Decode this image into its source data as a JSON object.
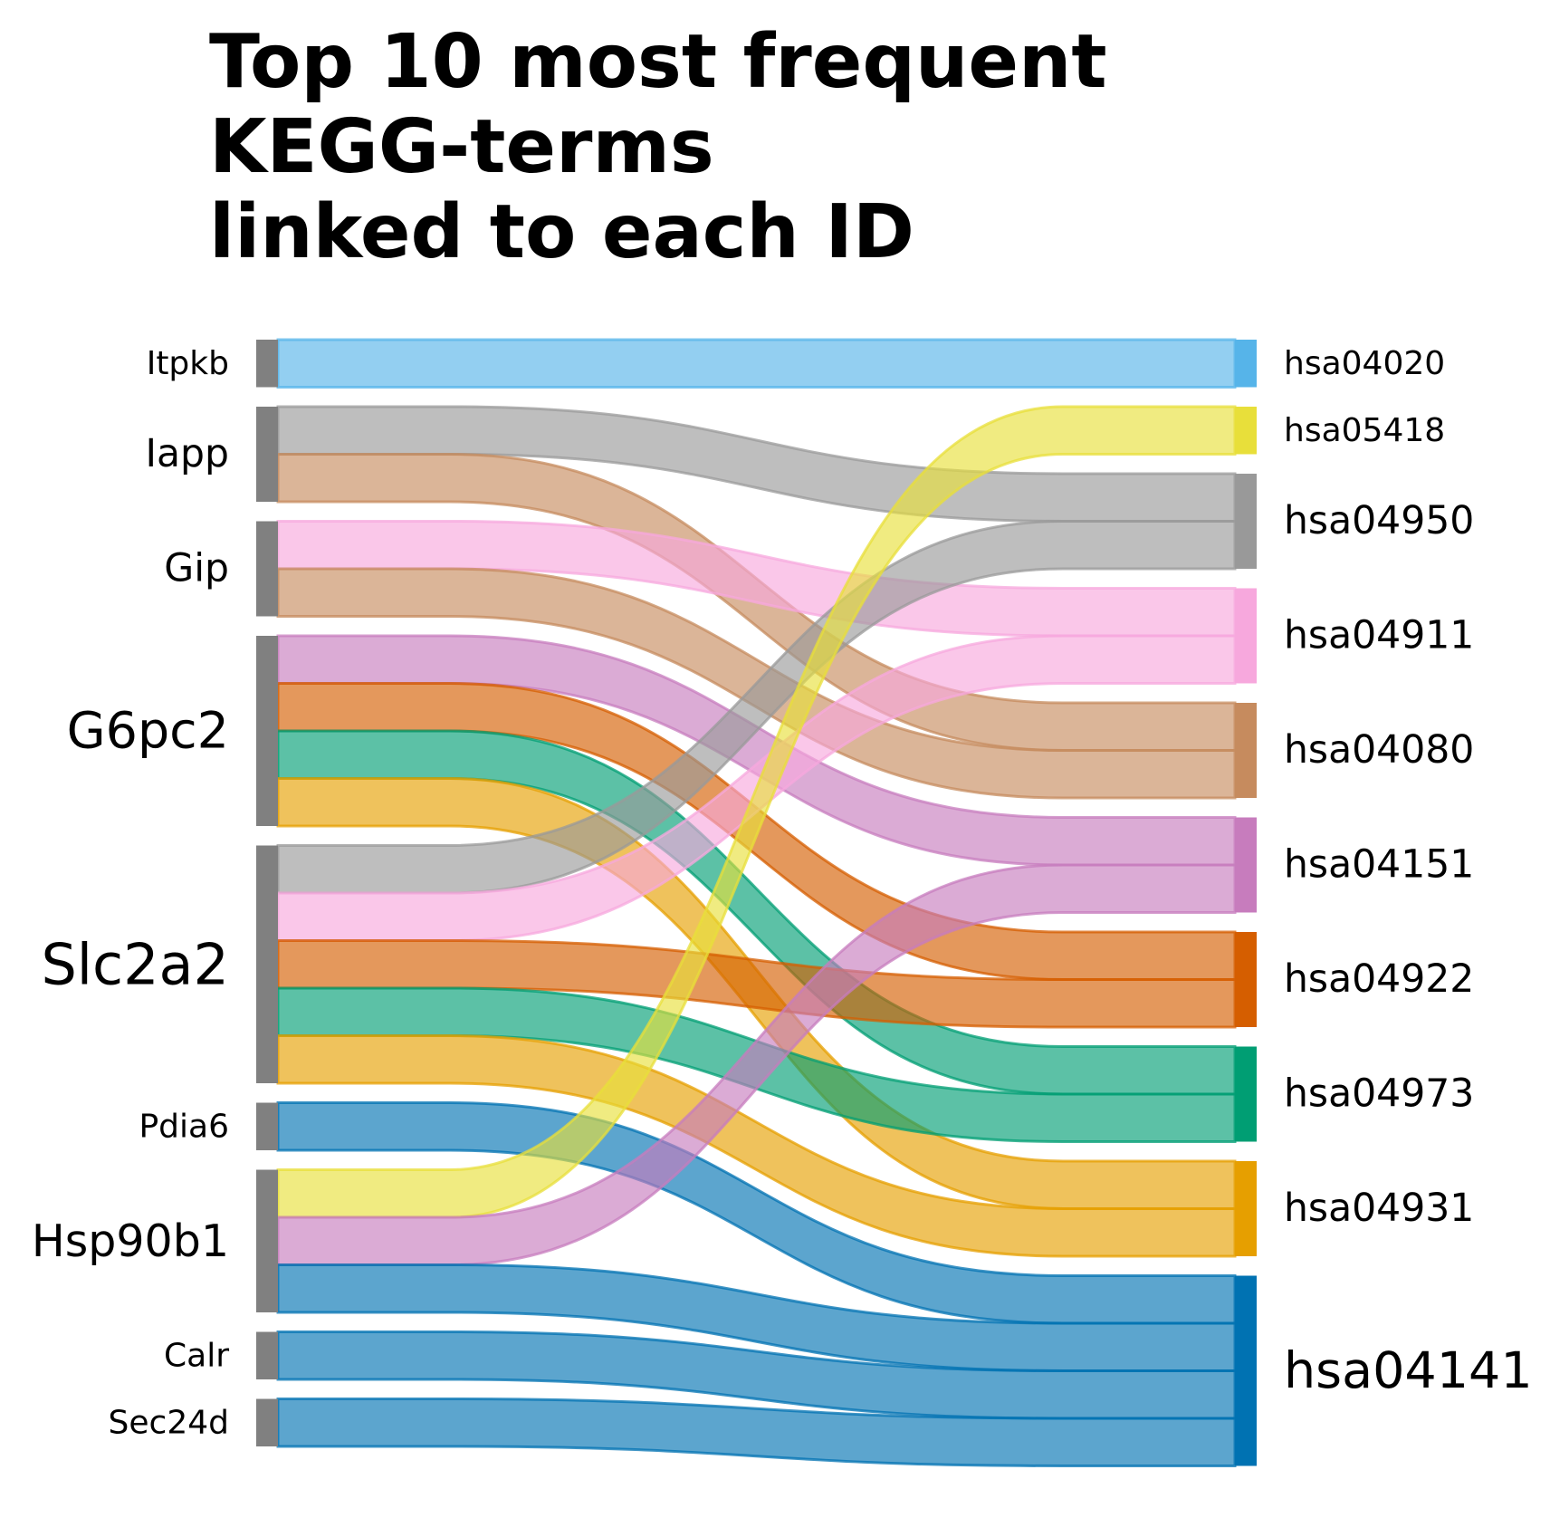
{
  "chart_data": {
    "type": "sankey",
    "title_lines": [
      "Top 10 most frequent",
      "KEGG-terms",
      "linked to each ID"
    ],
    "sources": [
      "Itpkb",
      "Iapp",
      "Gip",
      "G6pc2",
      "Slc2a2",
      "Pdia6",
      "Hsp90b1",
      "Calr",
      "Sec24d"
    ],
    "targets": [
      "hsa04020",
      "hsa05418",
      "hsa04950",
      "hsa04911",
      "hsa04080",
      "hsa04151",
      "hsa04922",
      "hsa04973",
      "hsa04931",
      "hsa04141"
    ],
    "target_colors": {
      "hsa04020": "#56B4E9",
      "hsa05418": "#E8DF3A",
      "hsa04950": "#999999",
      "hsa04911": "#F7A8DD",
      "hsa04080": "#C68B5E",
      "hsa04151": "#C77CBD",
      "hsa04922": "#D55E00",
      "hsa04973": "#009E73",
      "hsa04931": "#E69F00",
      "hsa04141": "#0072B2"
    },
    "source_node_color": "#808080",
    "links": [
      {
        "source": "Itpkb",
        "target": "hsa04020",
        "value": 1
      },
      {
        "source": "Iapp",
        "target": "hsa04950",
        "value": 1
      },
      {
        "source": "Iapp",
        "target": "hsa04080",
        "value": 1
      },
      {
        "source": "Gip",
        "target": "hsa04911",
        "value": 1
      },
      {
        "source": "Gip",
        "target": "hsa04080",
        "value": 1
      },
      {
        "source": "G6pc2",
        "target": "hsa04151",
        "value": 1
      },
      {
        "source": "G6pc2",
        "target": "hsa04922",
        "value": 1
      },
      {
        "source": "G6pc2",
        "target": "hsa04973",
        "value": 1
      },
      {
        "source": "G6pc2",
        "target": "hsa04931",
        "value": 1
      },
      {
        "source": "Slc2a2",
        "target": "hsa04950",
        "value": 1
      },
      {
        "source": "Slc2a2",
        "target": "hsa04911",
        "value": 1
      },
      {
        "source": "Slc2a2",
        "target": "hsa04922",
        "value": 1
      },
      {
        "source": "Slc2a2",
        "target": "hsa04973",
        "value": 1
      },
      {
        "source": "Slc2a2",
        "target": "hsa04931",
        "value": 1
      },
      {
        "source": "Pdia6",
        "target": "hsa04141",
        "value": 1
      },
      {
        "source": "Hsp90b1",
        "target": "hsa05418",
        "value": 1
      },
      {
        "source": "Hsp90b1",
        "target": "hsa04151",
        "value": 1
      },
      {
        "source": "Hsp90b1",
        "target": "hsa04141",
        "value": 1
      },
      {
        "source": "Calr",
        "target": "hsa04141",
        "value": 1
      },
      {
        "source": "Sec24d",
        "target": "hsa04141",
        "value": 1
      }
    ]
  }
}
